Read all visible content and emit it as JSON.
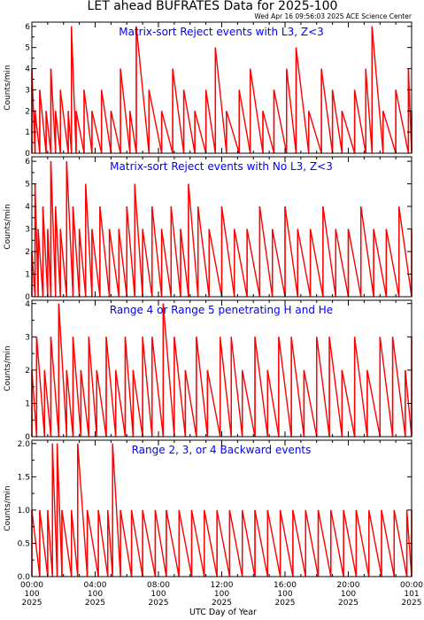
{
  "header": {
    "title": "LET ahead BUFRATES Data for 2025-100",
    "timestamp": "Wed Apr 16 09:56:03 2025 ACE Science Center"
  },
  "colors": {
    "data": "#ff0000",
    "panel_title": "#0000ff",
    "axes": "#000000"
  },
  "xaxis": {
    "label": "UTC Day of Year",
    "range_hours": [
      0,
      24
    ],
    "ticks": [
      {
        "hour": 0,
        "time": "00:00",
        "doy": "100",
        "year": "2025"
      },
      {
        "hour": 4,
        "time": "04:00",
        "doy": "100",
        "year": "2025"
      },
      {
        "hour": 8,
        "time": "08:00",
        "doy": "100",
        "year": "2025"
      },
      {
        "hour": 12,
        "time": "12:00",
        "doy": "100",
        "year": "2025"
      },
      {
        "hour": 16,
        "time": "16:00",
        "doy": "100",
        "year": "2025"
      },
      {
        "hour": 20,
        "time": "20:00",
        "doy": "100",
        "year": "2025"
      },
      {
        "hour": 24,
        "time": "00:00",
        "doy": "101",
        "year": "2025"
      }
    ]
  },
  "chart_data": [
    {
      "type": "line",
      "title": "Matrix-sort Reject events with L3, Z<3",
      "ylabel": "Counts/min",
      "ylim": [
        0,
        6.2
      ],
      "yticks": [
        "0",
        "1",
        "2",
        "3",
        "4",
        "5",
        "6"
      ],
      "x": [
        0.0,
        0.2,
        0.5,
        0.9,
        1.2,
        1.5,
        1.8,
        2.3,
        2.5,
        2.8,
        3.3,
        3.8,
        4.4,
        5.0,
        5.6,
        6.2,
        6.6,
        7.4,
        8.2,
        8.9,
        9.6,
        10.3,
        11.0,
        11.6,
        12.3,
        13.1,
        13.8,
        14.6,
        15.3,
        16.1,
        16.7,
        17.5,
        18.3,
        19.0,
        19.6,
        20.4,
        21.1,
        21.5,
        22.2,
        23.0,
        23.8,
        24.0
      ],
      "y": [
        4,
        2,
        3,
        2,
        4,
        2,
        3,
        2,
        6,
        2,
        3,
        2,
        3,
        2,
        4,
        2,
        6,
        3,
        2,
        4,
        3,
        2,
        3,
        5,
        2,
        3,
        4,
        2,
        3,
        4,
        5,
        2,
        4,
        3,
        2,
        3,
        4,
        6,
        2,
        3,
        4,
        2
      ]
    },
    {
      "type": "line",
      "title": "Matrix-sort Reject events with No L3, Z<3",
      "ylabel": "Counts/min",
      "ylim": [
        0,
        6.2
      ],
      "yticks": [
        "0",
        "1",
        "2",
        "3",
        "4",
        "5",
        "6"
      ],
      "x": [
        0.0,
        0.2,
        0.4,
        0.7,
        1.0,
        1.2,
        1.5,
        1.8,
        2.2,
        2.6,
        3.0,
        3.4,
        3.8,
        4.3,
        4.9,
        5.5,
        6.0,
        6.5,
        7.0,
        7.6,
        8.2,
        8.8,
        9.4,
        9.9,
        10.5,
        11.2,
        12.0,
        12.8,
        13.6,
        14.4,
        15.2,
        16.0,
        16.8,
        17.6,
        18.4,
        19.2,
        20.0,
        20.8,
        21.6,
        22.4,
        23.2,
        24.0
      ],
      "y": [
        2,
        5,
        3,
        4,
        3,
        6,
        4,
        3,
        6,
        4,
        3,
        5,
        3,
        4,
        3,
        3,
        4,
        5,
        3,
        4,
        3,
        4,
        3,
        5,
        4,
        3,
        4,
        3,
        3,
        4,
        3,
        4,
        3,
        3,
        4,
        3,
        3,
        4,
        3,
        3,
        4,
        3
      ]
    },
    {
      "type": "line",
      "title": "Range 4 or Range 5 penetrating H and He",
      "ylabel": "Counts/min",
      "ylim": [
        0,
        4.1
      ],
      "yticks": [
        "0",
        "1",
        "2",
        "3",
        "4"
      ],
      "x": [
        0.0,
        0.3,
        0.8,
        1.2,
        1.7,
        2.2,
        2.6,
        3.1,
        3.6,
        4.1,
        4.7,
        5.3,
        5.9,
        6.4,
        7.0,
        7.6,
        8.3,
        9.0,
        9.7,
        10.4,
        11.1,
        11.9,
        12.6,
        13.3,
        14.1,
        14.9,
        15.6,
        16.4,
        17.2,
        18.0,
        18.8,
        19.6,
        20.4,
        21.2,
        22.0,
        22.8,
        23.6,
        24.0
      ],
      "y": [
        2,
        3,
        2,
        3,
        4,
        2,
        3,
        2,
        3,
        2,
        3,
        2,
        3,
        2,
        3,
        3,
        4,
        3,
        2,
        3,
        2,
        3,
        3,
        2,
        3,
        2,
        3,
        3,
        2,
        3,
        3,
        2,
        3,
        2,
        3,
        3,
        2,
        3
      ]
    },
    {
      "type": "line",
      "title": "Range 2, 3, or 4 Backward events",
      "ylabel": "Counts/min",
      "ylim": [
        0,
        2.05
      ],
      "yticks": [
        "0.0",
        "0.5",
        "1.0",
        "1.5",
        "2.0"
      ],
      "x": [
        0.0,
        0.5,
        1.0,
        1.3,
        1.6,
        1.9,
        2.5,
        2.9,
        3.5,
        4.2,
        4.8,
        5.1,
        5.6,
        6.3,
        7.0,
        7.8,
        8.5,
        9.3,
        10.1,
        10.9,
        11.7,
        12.5,
        13.3,
        14.1,
        14.9,
        15.7,
        16.5,
        17.3,
        18.1,
        18.9,
        19.7,
        20.5,
        21.3,
        22.1,
        22.9,
        23.7,
        24.0
      ],
      "y": [
        1,
        1,
        1,
        2,
        2,
        1,
        1,
        2,
        1,
        1,
        1,
        2,
        1,
        1,
        1,
        1,
        1,
        1,
        1,
        1,
        1,
        1,
        1,
        1,
        1,
        1,
        1,
        1,
        1,
        1,
        1,
        1,
        1,
        1,
        1,
        1,
        1
      ]
    }
  ]
}
